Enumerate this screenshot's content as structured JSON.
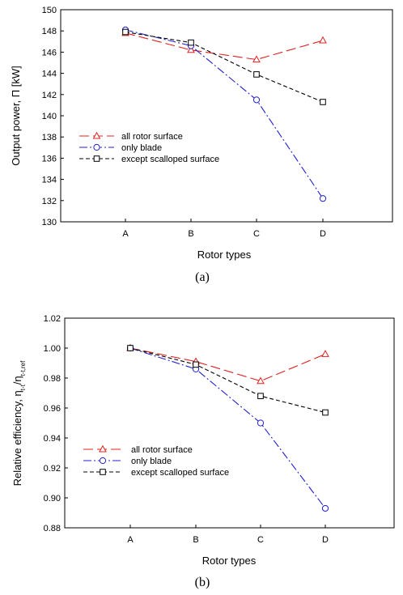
{
  "chart_data": [
    {
      "type": "line",
      "caption": "(a)",
      "categories": [
        "A",
        "B",
        "C",
        "D"
      ],
      "xlabel": "Rotor types",
      "ylabel": "Output power, Π [kW]",
      "ylim": [
        130,
        150
      ],
      "yticks": [
        "130",
        "132",
        "134",
        "136",
        "138",
        "140",
        "142",
        "144",
        "146",
        "148",
        "150"
      ],
      "grid": false,
      "legend_position": "middle-left",
      "series": [
        {
          "name": "all rotor surface",
          "values": [
            147.8,
            146.2,
            145.3,
            147.1
          ],
          "color": "#e02020",
          "marker": "triangle",
          "dash": "12,5"
        },
        {
          "name": "only blade",
          "values": [
            148.1,
            146.6,
            141.5,
            132.2
          ],
          "color": "#2020d0",
          "marker": "circle",
          "dash": "10,3,2,3"
        },
        {
          "name": "except scalloped surface",
          "values": [
            147.9,
            146.9,
            143.9,
            141.3
          ],
          "color": "#000000",
          "marker": "square",
          "dash": "5,3"
        }
      ]
    },
    {
      "type": "line",
      "caption": "(b)",
      "categories": [
        "A",
        "B",
        "C",
        "D"
      ],
      "xlabel": "Rotor types",
      "ylabel": "Relative efficiency, ηt-t/ηt-t,ref",
      "ylim": [
        0.88,
        1.02
      ],
      "yticks": [
        "0.88",
        "0.90",
        "0.92",
        "0.94",
        "0.96",
        "0.98",
        "1.00",
        "1.02"
      ],
      "grid": false,
      "legend_position": "bottom-left",
      "series": [
        {
          "name": "all rotor surface",
          "values": [
            1.0,
            0.991,
            0.978,
            0.996
          ],
          "color": "#e02020",
          "marker": "triangle",
          "dash": "12,5"
        },
        {
          "name": "only blade",
          "values": [
            1.0,
            0.986,
            0.95,
            0.893
          ],
          "color": "#2020d0",
          "marker": "circle",
          "dash": "10,3,2,3"
        },
        {
          "name": "except scalloped surface",
          "values": [
            1.0,
            0.989,
            0.968,
            0.957
          ],
          "color": "#000000",
          "marker": "square",
          "dash": "5,3"
        }
      ]
    }
  ]
}
